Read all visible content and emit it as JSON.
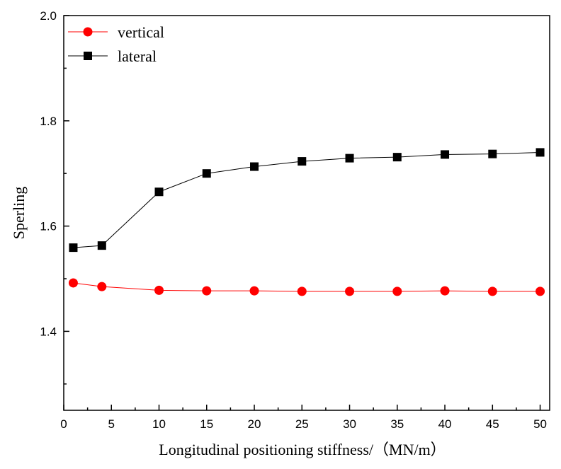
{
  "chart_data": {
    "type": "line",
    "title": "",
    "xlabel": "Longitudinal positioning stiffness/（MN/m）",
    "ylabel": "Sperling",
    "xlim": [
      0,
      51
    ],
    "ylim": [
      1.25,
      2.0
    ],
    "x_ticks": [
      0,
      5,
      10,
      15,
      20,
      25,
      30,
      35,
      40,
      45,
      50
    ],
    "y_ticks": [
      1.4,
      1.6,
      1.8,
      2.0
    ],
    "x_tick_labels": [
      "0",
      "5",
      "10",
      "15",
      "20",
      "25",
      "30",
      "35",
      "40",
      "45",
      "50"
    ],
    "y_tick_labels": [
      "1.4",
      "1.6",
      "1.8",
      "2.0"
    ],
    "grid": false,
    "legend_position": "top-left",
    "x": [
      1,
      4,
      10,
      15,
      20,
      25,
      30,
      35,
      40,
      45,
      50
    ],
    "series": [
      {
        "name": "vertical",
        "color": "#ff0000",
        "marker": "circle",
        "values": [
          1.492,
          1.485,
          1.478,
          1.477,
          1.477,
          1.476,
          1.476,
          1.476,
          1.477,
          1.476,
          1.476
        ]
      },
      {
        "name": "lateral",
        "color": "#000000",
        "marker": "square",
        "values": [
          1.559,
          1.563,
          1.665,
          1.7,
          1.713,
          1.723,
          1.729,
          1.731,
          1.736,
          1.737,
          1.74
        ]
      }
    ]
  }
}
